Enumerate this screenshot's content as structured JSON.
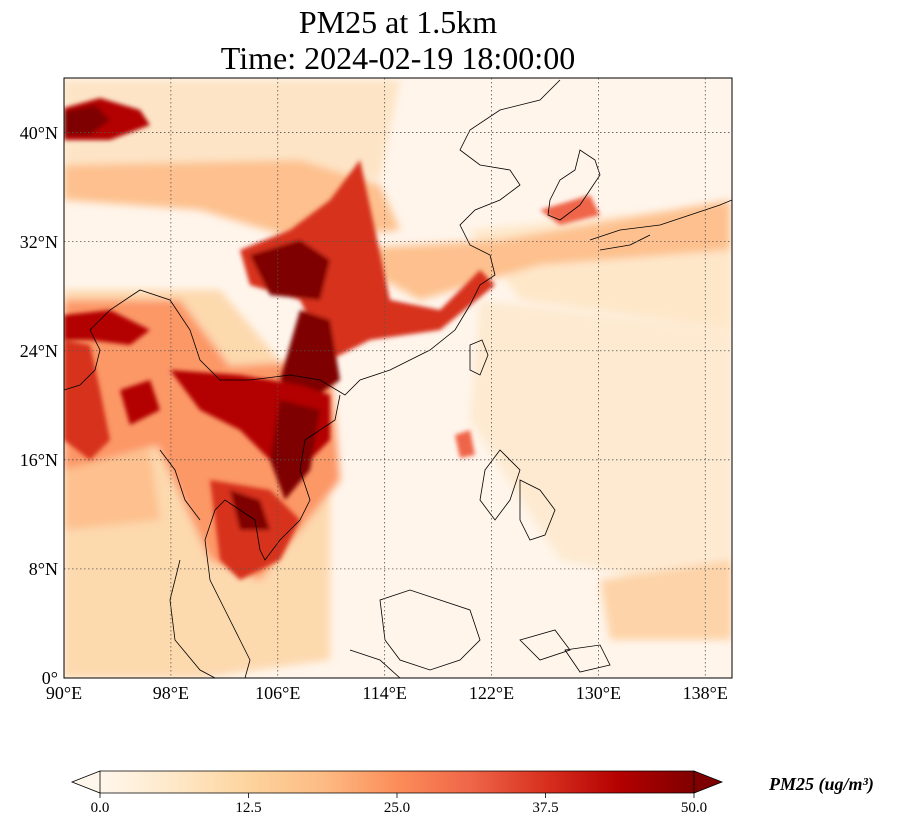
{
  "title": {
    "line1": "PM25 at 1.5km",
    "line2": "Time: 2024-02-19 18:00:00"
  },
  "map": {
    "lon_range": [
      90,
      140
    ],
    "lat_range": [
      0,
      44
    ],
    "lon_ticks": [
      {
        "value": 90,
        "label": "90°E"
      },
      {
        "value": 98,
        "label": "98°E"
      },
      {
        "value": 106,
        "label": "106°E"
      },
      {
        "value": 114,
        "label": "114°E"
      },
      {
        "value": 122,
        "label": "122°E"
      },
      {
        "value": 130,
        "label": "130°E"
      },
      {
        "value": 138,
        "label": "138°E"
      }
    ],
    "lat_ticks": [
      {
        "value": 0,
        "label": "0°"
      },
      {
        "value": 8,
        "label": "8°N"
      },
      {
        "value": 16,
        "label": "16°N"
      },
      {
        "value": 24,
        "label": "24°N"
      },
      {
        "value": 32,
        "label": "32°N"
      },
      {
        "value": 40,
        "label": "40°N"
      }
    ],
    "gridlines": "dotted",
    "background_color": "#fff5eb",
    "coastline_color": "#000000"
  },
  "colorbar": {
    "label": "PM25 (ug/m³)",
    "min": 0,
    "max": 50,
    "ticks": [
      "0.0",
      "12.5",
      "25.0",
      "37.5",
      "50.0"
    ],
    "extend": "both",
    "colormap": "OrRd",
    "colors": [
      "#fff7ec",
      "#fee8c8",
      "#fdd49e",
      "#fdbb84",
      "#fc8d59",
      "#ef6548",
      "#d7301f",
      "#b30000",
      "#7f0000"
    ]
  }
}
